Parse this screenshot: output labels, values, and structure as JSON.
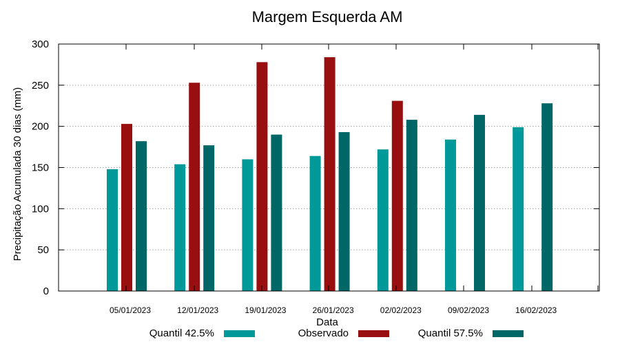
{
  "colors": {
    "q425": "#009999",
    "obs": "#990f0f",
    "q575": "#006666"
  },
  "chart_data": {
    "type": "bar",
    "title": "Margem Esquerda AM",
    "xlabel": "Data",
    "ylabel": "Precipitação Acumulada 30 dias (mm)",
    "ylim": [
      0,
      300
    ],
    "yticks": [
      0,
      50,
      100,
      150,
      200,
      250,
      300
    ],
    "grid": true,
    "legend_position": "bottom",
    "categories": [
      "05/01/2023",
      "12/01/2023",
      "19/01/2023",
      "26/01/2023",
      "02/02/2023",
      "09/02/2023",
      "16/02/2023"
    ],
    "series": [
      {
        "name": "Quantil 42.5%",
        "color_key": "q425",
        "values": [
          148,
          154,
          160,
          164,
          172,
          184,
          199
        ]
      },
      {
        "name": "Observado",
        "color_key": "obs",
        "values": [
          203,
          253,
          278,
          284,
          231,
          null,
          null
        ]
      },
      {
        "name": "Quantil 57.5%",
        "color_key": "q575",
        "values": [
          182,
          177,
          190,
          193,
          208,
          214,
          228
        ]
      }
    ]
  }
}
